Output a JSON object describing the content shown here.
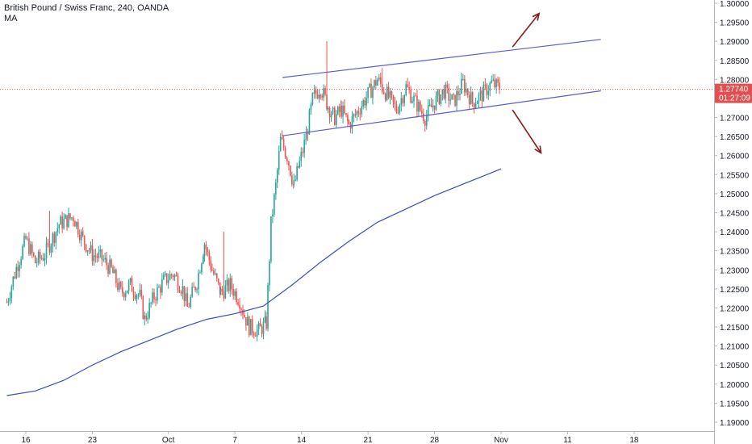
{
  "header": {
    "symbol_line": "British Pound / Swiss Franc, 240, OANDA",
    "indicator_label": "MA"
  },
  "colors": {
    "background": "#ffffff",
    "up_candle": "#26a69a",
    "down_candle": "#ef5350",
    "moving_average": "#3b4cc0",
    "channel_line": "#5a5ad0",
    "arrow": "#8b1a1a",
    "price_line": "#e05050",
    "price_badge": "#e05050",
    "axis_text": "#131722",
    "axis_line": "#b2b5be"
  },
  "icons": [
    "up-right-arrow-icon",
    "down-right-arrow-icon"
  ],
  "price_badge": {
    "price": "1.27740",
    "countdown": "01:27:09"
  },
  "chart_data": {
    "type": "candlestick",
    "title": "British Pound / Swiss Franc, 240, OANDA",
    "ylim": [
      1.1875,
      1.3015
    ],
    "y_ticks": [
      "1.30000",
      "1.29500",
      "1.29000",
      "1.28500",
      "1.28000",
      "1.27500",
      "1.27000",
      "1.26500",
      "1.26000",
      "1.25500",
      "1.25000",
      "1.24500",
      "1.24000",
      "1.23500",
      "1.23000",
      "1.22500",
      "1.22000",
      "1.21500",
      "1.21000",
      "1.20500",
      "1.20000",
      "1.19500",
      "1.19000"
    ],
    "x_ticks": [
      "16",
      "23",
      "Oct",
      "7",
      "14",
      "21",
      "28",
      "Nov",
      "11",
      "18"
    ],
    "x_tick_days": [
      16,
      23,
      31,
      38,
      45,
      52,
      59,
      66,
      73,
      80
    ],
    "note": "x positions expressed as days since Sep 1 (16 = Sep 16, 31 = Oct 1, 66 = Nov 4)",
    "current_price": 1.2774,
    "close_path": [
      [
        14.0,
        1.2215
      ],
      [
        15.0,
        1.2305
      ],
      [
        16.0,
        1.238
      ],
      [
        17.0,
        1.232
      ],
      [
        18.0,
        1.234
      ],
      [
        19.5,
        1.242
      ],
      [
        21.0,
        1.244
      ],
      [
        22.0,
        1.238
      ],
      [
        23.0,
        1.234
      ],
      [
        24.0,
        1.233
      ],
      [
        25.0,
        1.23
      ],
      [
        26.0,
        1.224
      ],
      [
        27.0,
        1.226
      ],
      [
        28.0,
        1.223
      ],
      [
        28.5,
        1.217
      ],
      [
        29.5,
        1.223
      ],
      [
        30.5,
        1.227
      ],
      [
        31.5,
        1.229
      ],
      [
        32.5,
        1.225
      ],
      [
        33.0,
        1.22
      ],
      [
        34.0,
        1.227
      ],
      [
        34.8,
        1.237
      ],
      [
        35.6,
        1.23
      ],
      [
        36.5,
        1.224
      ],
      [
        37.5,
        1.226
      ],
      [
        38.5,
        1.222
      ],
      [
        39.0,
        1.218
      ],
      [
        39.5,
        1.215
      ],
      [
        40.5,
        1.214
      ],
      [
        41.3,
        1.216
      ],
      [
        41.8,
        1.242
      ],
      [
        42.3,
        1.252
      ],
      [
        42.8,
        1.264
      ],
      [
        43.5,
        1.26
      ],
      [
        44.2,
        1.252
      ],
      [
        44.8,
        1.258
      ],
      [
        45.5,
        1.265
      ],
      [
        46.2,
        1.275
      ],
      [
        47.0,
        1.278
      ],
      [
        47.8,
        1.273
      ],
      [
        48.5,
        1.27
      ],
      [
        49.2,
        1.272
      ],
      [
        50.0,
        1.268
      ],
      [
        51.0,
        1.272
      ],
      [
        52.0,
        1.276
      ],
      [
        53.0,
        1.28
      ],
      [
        54.0,
        1.276
      ],
      [
        55.0,
        1.272
      ],
      [
        56.0,
        1.278
      ],
      [
        57.0,
        1.274
      ],
      [
        58.0,
        1.27
      ],
      [
        59.0,
        1.274
      ],
      [
        60.0,
        1.277
      ],
      [
        61.0,
        1.274
      ],
      [
        62.0,
        1.279
      ],
      [
        63.0,
        1.274
      ],
      [
        64.0,
        1.276
      ],
      [
        65.0,
        1.279
      ],
      [
        66.0,
        1.2774
      ]
    ],
    "high_spikes": [
      {
        "day": 18.5,
        "price": 1.2455
      },
      {
        "day": 36.8,
        "price": 1.24
      },
      {
        "day": 47.6,
        "price": 1.29
      },
      {
        "day": 53.5,
        "price": 1.283
      }
    ],
    "moving_average": {
      "name": "MA",
      "points": [
        [
          14.0,
          1.197
        ],
        [
          17.0,
          1.1982
        ],
        [
          20.0,
          1.201
        ],
        [
          23.0,
          1.205
        ],
        [
          26.0,
          1.2085
        ],
        [
          29.0,
          1.2115
        ],
        [
          32.0,
          1.2145
        ],
        [
          35.0,
          1.217
        ],
        [
          38.0,
          1.2185
        ],
        [
          41.0,
          1.2205
        ],
        [
          44.0,
          1.226
        ],
        [
          47.0,
          1.232
        ],
        [
          50.0,
          1.2375
        ],
        [
          53.0,
          1.2425
        ],
        [
          56.0,
          1.246
        ],
        [
          59.0,
          1.2495
        ],
        [
          62.0,
          1.2525
        ],
        [
          64.0,
          1.2545
        ],
        [
          66.0,
          1.2565
        ]
      ]
    },
    "channel": {
      "upper": [
        [
          43.0,
          1.2805
        ],
        [
          76.5,
          1.2905
        ]
      ],
      "lower": [
        [
          43.0,
          1.2652
        ],
        [
          76.5,
          1.277
        ]
      ]
    },
    "arrows": [
      {
        "name": "breakout-up",
        "from": [
          67.2,
          1.2885
        ],
        "to": [
          70.0,
          1.2973
        ]
      },
      {
        "name": "breakdown-down",
        "from": [
          67.2,
          1.272
        ],
        "to": [
          70.2,
          1.2607
        ]
      }
    ]
  }
}
